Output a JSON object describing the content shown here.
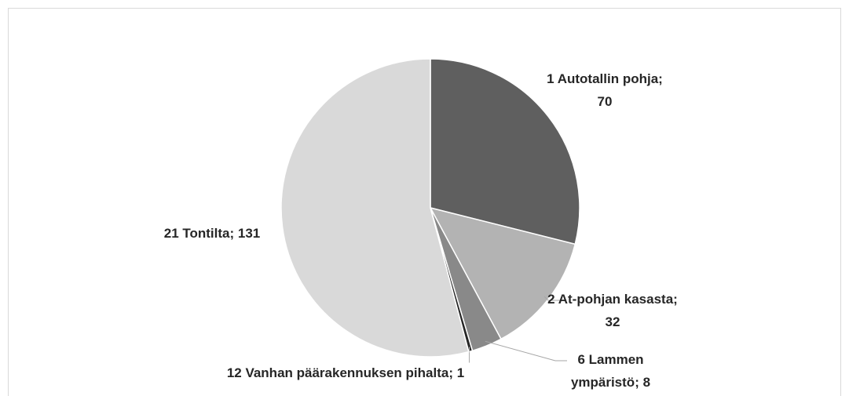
{
  "chart_data": {
    "type": "pie",
    "categories": [
      "1 Autotallin pohja",
      "2 At-pohjan kasasta",
      "6 Lammen ympäristö",
      "12 Vanhan päärakennuksen pihalta",
      "21 Tontilta"
    ],
    "values": [
      70,
      32,
      8,
      1,
      131
    ],
    "colors": [
      "#5f5f5f",
      "#b3b3b3",
      "#898989",
      "#262626",
      "#d9d9d9"
    ],
    "label_separator": "; "
  }
}
